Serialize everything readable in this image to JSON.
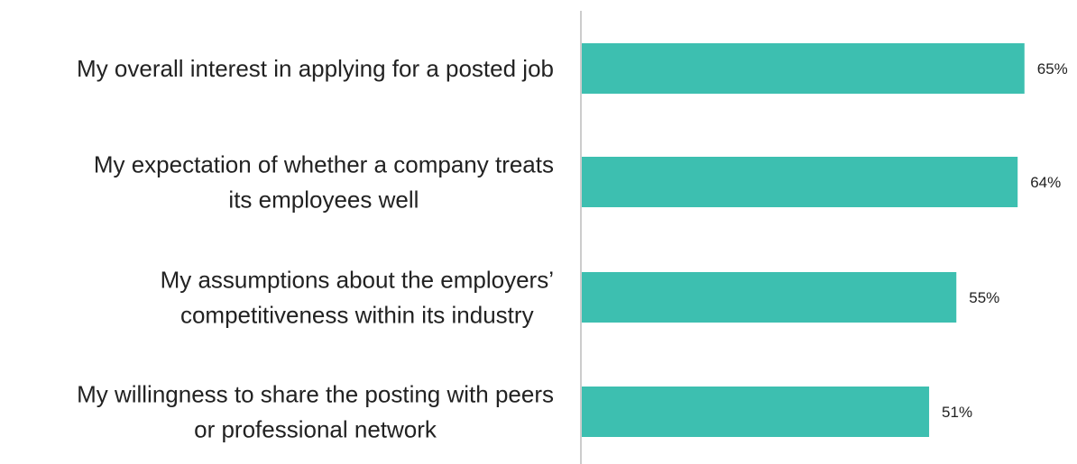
{
  "chart_data": {
    "type": "bar",
    "orientation": "horizontal",
    "categories": [
      "My overall interest in applying for a posted job",
      "My expectation of whether a company treats its employees well",
      "My assumptions about the employers’ competitiveness within its industry",
      "My willingness to share the posting with peers or professional network"
    ],
    "category_lines": [
      [
        "My overall interest in applying for a posted job"
      ],
      [
        "My expectation of whether a company treats",
        "its employees well"
      ],
      [
        "My assumptions about the employers’",
        "competitiveness within its industry"
      ],
      [
        "My willingness to share the posting with peers",
        "or professional network"
      ]
    ],
    "values": [
      65,
      64,
      55,
      51
    ],
    "value_labels": [
      "65%",
      "64%",
      "55%",
      "51%"
    ],
    "xlim": [
      0,
      100
    ],
    "grid": false,
    "legend": "none",
    "colors": {
      "bar": "#3dbfb0",
      "axis": "#cccccc",
      "text": "#222222"
    }
  }
}
